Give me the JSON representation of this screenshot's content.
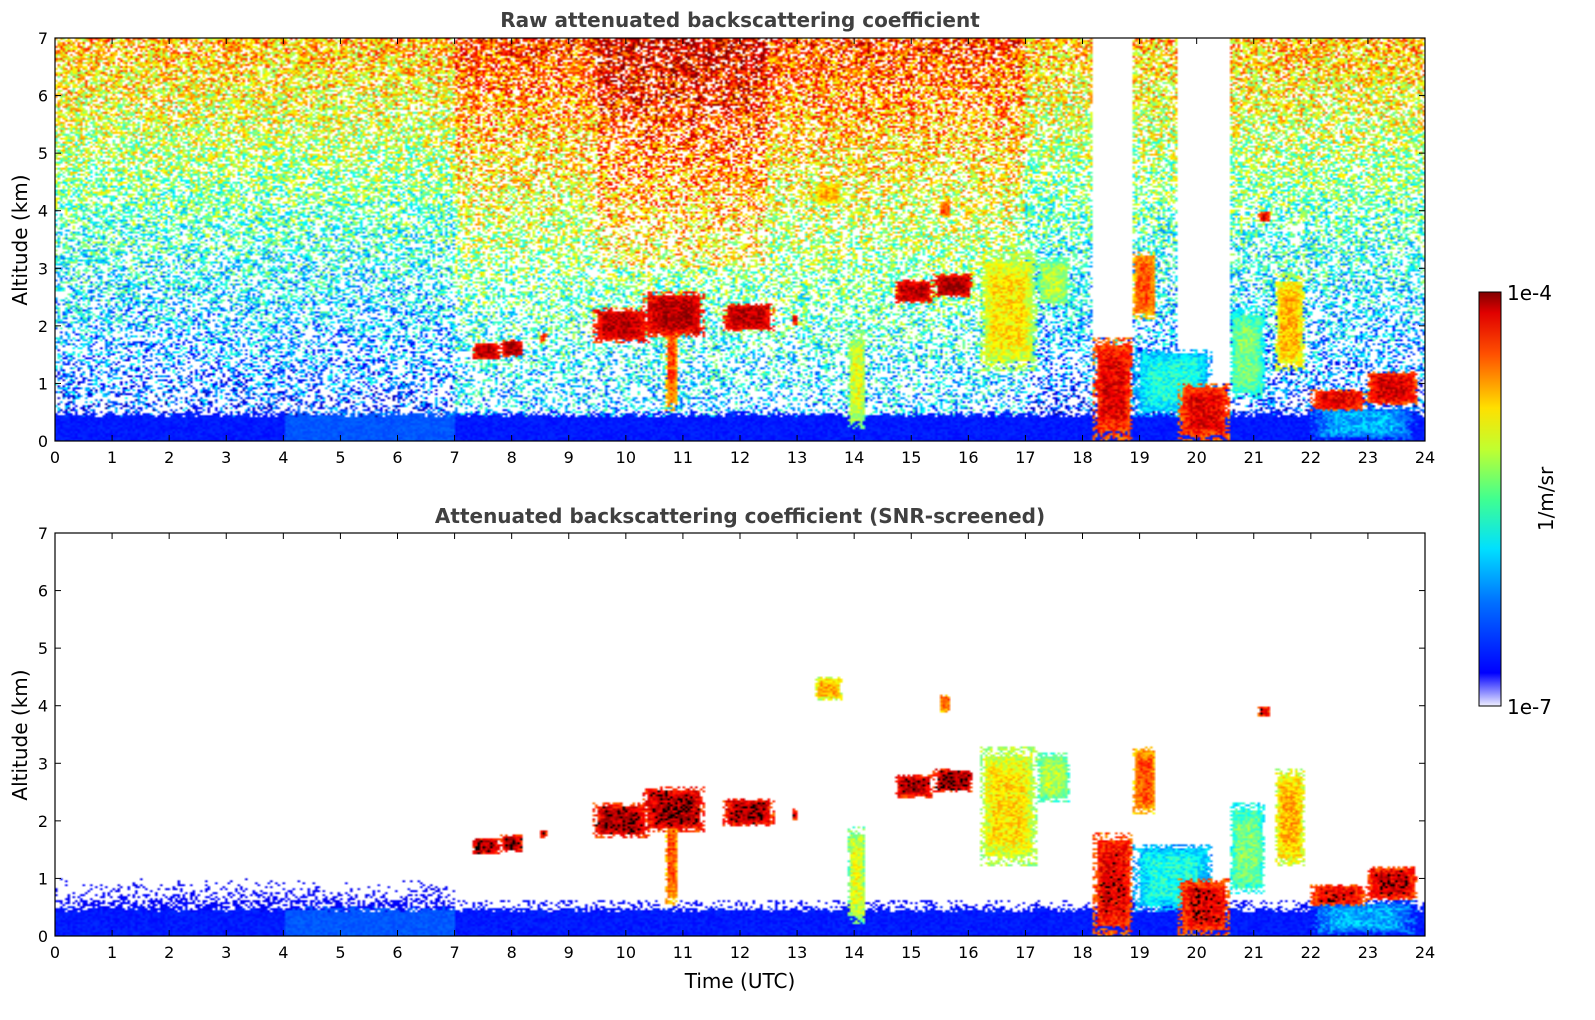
{
  "chart_data": [
    {
      "type": "heatmap",
      "title": "Raw attenuated backscattering coefficient",
      "xlabel": "",
      "ylabel": "Altitude (km)",
      "xlim": [
        0,
        24
      ],
      "ylim": [
        0,
        7
      ],
      "xticks": [
        "0",
        "1",
        "2",
        "3",
        "4",
        "5",
        "6",
        "7",
        "8",
        "9",
        "10",
        "11",
        "12",
        "13",
        "14",
        "15",
        "16",
        "17",
        "18",
        "19",
        "20",
        "21",
        "22",
        "23",
        "24"
      ],
      "yticks": [
        "0",
        "1",
        "2",
        "3",
        "4",
        "5",
        "6",
        "7"
      ],
      "colorscale": "jet",
      "cloud_layers": [
        {
          "x": [
            7.3,
            7.8
          ],
          "y": [
            1.4,
            1.7
          ],
          "level": 0.95
        },
        {
          "x": [
            7.8,
            8.2
          ],
          "y": [
            1.45,
            1.75
          ],
          "level": 0.95
        },
        {
          "x": [
            8.5,
            8.6
          ],
          "y": [
            1.7,
            1.85
          ],
          "level": 0.9
        },
        {
          "x": [
            9.4,
            10.4
          ],
          "y": [
            1.7,
            2.3
          ],
          "level": 0.95
        },
        {
          "x": [
            10.3,
            11.4
          ],
          "y": [
            1.8,
            2.6
          ],
          "level": 0.95
        },
        {
          "x": [
            10.7,
            10.9
          ],
          "y": [
            0.5,
            2.4
          ],
          "level": 0.8
        },
        {
          "x": [
            11.7,
            12.6
          ],
          "y": [
            1.9,
            2.4
          ],
          "level": 0.95
        },
        {
          "x": [
            12.9,
            13.0
          ],
          "y": [
            2.0,
            2.2
          ],
          "level": 0.9
        },
        {
          "x": [
            14.7,
            15.4
          ],
          "y": [
            2.4,
            2.8
          ],
          "level": 0.95
        },
        {
          "x": [
            15.4,
            16.1
          ],
          "y": [
            2.5,
            2.9
          ],
          "level": 0.97
        },
        {
          "x": [
            16.2,
            17.2
          ],
          "y": [
            1.2,
            3.3
          ],
          "level": 0.65
        },
        {
          "x": [
            17.2,
            17.8
          ],
          "y": [
            2.3,
            3.2
          ],
          "level": 0.55
        },
        {
          "x": [
            13.3,
            13.8
          ],
          "y": [
            4.1,
            4.5
          ],
          "level": 0.7
        },
        {
          "x": [
            15.5,
            15.7
          ],
          "y": [
            3.9,
            4.2
          ],
          "level": 0.8
        },
        {
          "x": [
            13.9,
            14.2
          ],
          "y": [
            0.2,
            1.9
          ],
          "level": 0.6
        },
        {
          "x": [
            18.2,
            18.9
          ],
          "y": [
            0.0,
            1.8
          ],
          "level": 0.9
        },
        {
          "x": [
            18.9,
            19.3
          ],
          "y": [
            2.1,
            3.3
          ],
          "level": 0.8
        },
        {
          "x": [
            18.9,
            20.3
          ],
          "y": [
            0.4,
            1.6
          ],
          "level": 0.4
        },
        {
          "x": [
            19.7,
            20.6
          ],
          "y": [
            0.0,
            1.0
          ],
          "level": 0.9
        },
        {
          "x": [
            20.6,
            21.2
          ],
          "y": [
            0.7,
            2.3
          ],
          "level": 0.5
        },
        {
          "x": [
            21.1,
            21.3
          ],
          "y": [
            3.8,
            4.0
          ],
          "level": 0.9
        },
        {
          "x": [
            21.4,
            21.9
          ],
          "y": [
            1.2,
            2.9
          ],
          "level": 0.7
        },
        {
          "x": [
            22.0,
            23.0
          ],
          "y": [
            0.5,
            0.9
          ],
          "level": 0.9
        },
        {
          "x": [
            23.0,
            23.9
          ],
          "y": [
            0.6,
            1.2
          ],
          "level": 0.92
        },
        {
          "x": [
            22.0,
            23.9
          ],
          "y": [
            0.0,
            0.6
          ],
          "level": 0.3
        }
      ],
      "boundary_layer_top_km": 0.45,
      "noise": true
    },
    {
      "type": "heatmap",
      "title": "Attenuated backscattering coefficient (SNR-screened)",
      "xlabel": "Time (UTC)",
      "ylabel": "Altitude (km)",
      "xlim": [
        0,
        24
      ],
      "ylim": [
        0,
        7
      ],
      "xticks": [
        "0",
        "1",
        "2",
        "3",
        "4",
        "5",
        "6",
        "7",
        "8",
        "9",
        "10",
        "11",
        "12",
        "13",
        "14",
        "15",
        "16",
        "17",
        "18",
        "19",
        "20",
        "21",
        "22",
        "23",
        "24"
      ],
      "yticks": [
        "0",
        "1",
        "2",
        "3",
        "4",
        "5",
        "6",
        "7"
      ],
      "colorscale": "jet",
      "screened": true,
      "boundary_layer_top_km": 0.45,
      "noise": false
    }
  ],
  "colorbar": {
    "min_label": "1e-7",
    "max_label": "1e-4",
    "label": "1/m/sr"
  }
}
